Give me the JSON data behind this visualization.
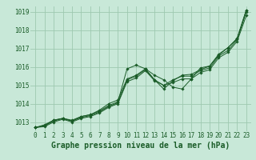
{
  "title": "Graphe pression niveau de la mer (hPa)",
  "bg_color": "#c8e8d8",
  "grid_color": "#9ec8b0",
  "line_color": "#1a5c28",
  "xlim": [
    -0.5,
    23.5
  ],
  "ylim": [
    1012.5,
    1019.3
  ],
  "yticks": [
    1013,
    1014,
    1015,
    1016,
    1017,
    1018,
    1019
  ],
  "xticks": [
    0,
    1,
    2,
    3,
    4,
    5,
    6,
    7,
    8,
    9,
    10,
    11,
    12,
    13,
    14,
    15,
    16,
    17,
    18,
    19,
    20,
    21,
    22,
    23
  ],
  "series": [
    [
      1012.7,
      1012.8,
      1013.1,
      1013.2,
      1013.05,
      1013.3,
      1013.4,
      1013.6,
      1013.9,
      1014.1,
      1015.9,
      1016.1,
      1015.9,
      1015.55,
      1015.3,
      1014.9,
      1014.8,
      1015.35,
      1015.95,
      1016.05,
      1016.65,
      1017.05,
      1017.55,
      1019.1
    ],
    [
      1012.7,
      1012.85,
      1013.1,
      1013.2,
      1013.1,
      1013.3,
      1013.4,
      1013.65,
      1014.0,
      1014.2,
      1015.35,
      1015.55,
      1015.9,
      1015.3,
      1014.8,
      1015.25,
      1015.55,
      1015.6,
      1015.85,
      1016.05,
      1016.7,
      1017.05,
      1017.55,
      1019.1
    ],
    [
      1012.7,
      1012.8,
      1013.05,
      1013.2,
      1013.05,
      1013.25,
      1013.35,
      1013.55,
      1013.85,
      1014.05,
      1015.3,
      1015.5,
      1015.85,
      1015.3,
      1015.0,
      1015.3,
      1015.5,
      1015.5,
      1015.8,
      1015.95,
      1016.6,
      1016.9,
      1017.5,
      1019.0
    ],
    [
      1012.7,
      1012.75,
      1013.0,
      1013.15,
      1013.0,
      1013.2,
      1013.3,
      1013.5,
      1013.8,
      1014.0,
      1015.2,
      1015.4,
      1015.8,
      1015.25,
      1015.0,
      1015.15,
      1015.35,
      1015.35,
      1015.7,
      1015.85,
      1016.5,
      1016.8,
      1017.4,
      1018.8
    ]
  ],
  "title_fontsize": 7,
  "tick_fontsize": 5.5
}
